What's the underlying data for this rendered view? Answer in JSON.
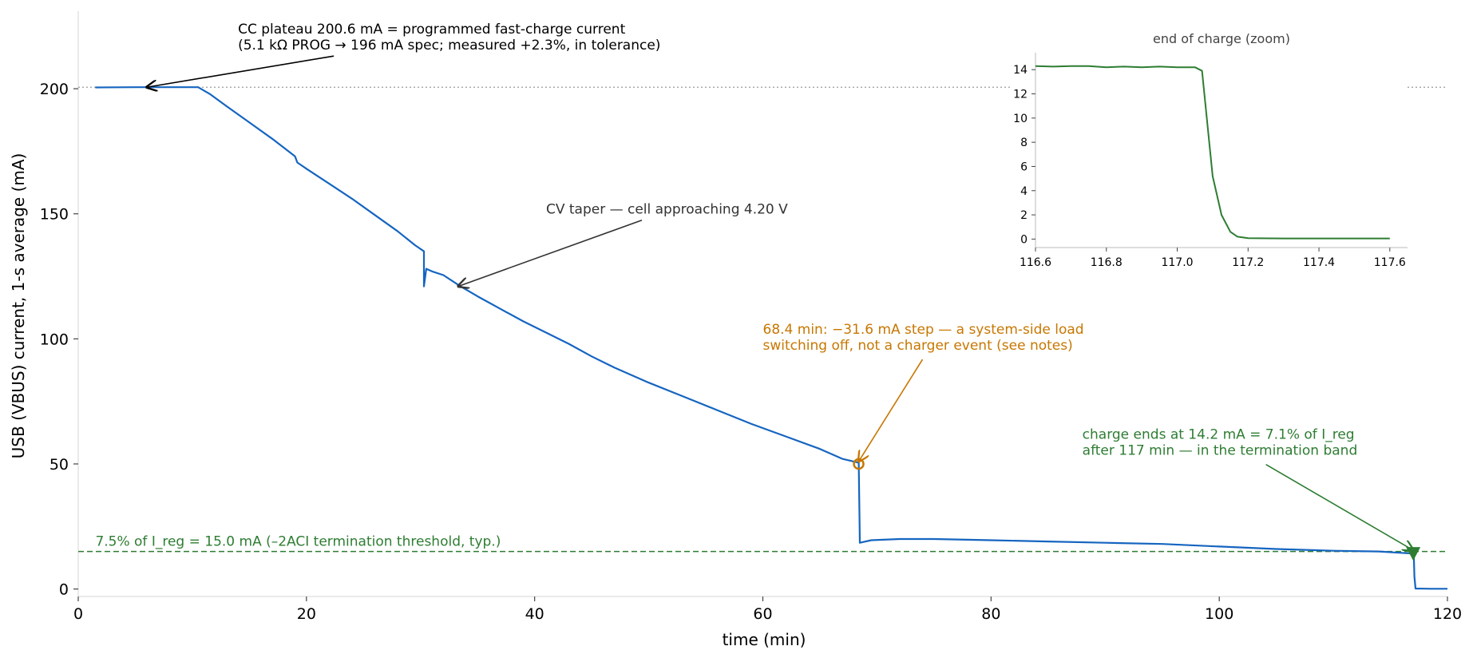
{
  "chart_data": {
    "type": "line",
    "xlabel": "time (min)",
    "ylabel": "USB (VBUS) current, 1-s average (mA)",
    "xlim": [
      0,
      120
    ],
    "ylim": [
      -3,
      231
    ],
    "x_ticks": [
      "0",
      "20",
      "40",
      "60",
      "80",
      "100",
      "120"
    ],
    "y_ticks": [
      "0",
      "50",
      "100",
      "150",
      "200"
    ],
    "colors": {
      "main": "#1565c0",
      "step": "#c77700",
      "term": "#2e7d32",
      "ref": "#999999",
      "text": "#333333"
    },
    "series": [
      {
        "color": "#1565c0",
        "points": [
          [
            1.5,
            200.5
          ],
          [
            5,
            200.6
          ],
          [
            8,
            200.6
          ],
          [
            10.5,
            200.6
          ],
          [
            11.5,
            198
          ],
          [
            13,
            193
          ],
          [
            15,
            186.5
          ],
          [
            17,
            180
          ],
          [
            19,
            173
          ],
          [
            19.2,
            170.5
          ],
          [
            20,
            168
          ],
          [
            22,
            162
          ],
          [
            24,
            156
          ],
          [
            26,
            149.5
          ],
          [
            28,
            143
          ],
          [
            29.5,
            137.5
          ],
          [
            30.3,
            135
          ],
          [
            30.3,
            121
          ],
          [
            30.5,
            128
          ],
          [
            31,
            127
          ],
          [
            32,
            125.5
          ],
          [
            33.5,
            121
          ],
          [
            35,
            117
          ],
          [
            37,
            112
          ],
          [
            39,
            107
          ],
          [
            41,
            102.5
          ],
          [
            43,
            98
          ],
          [
            45,
            93
          ],
          [
            47,
            88.5
          ],
          [
            50,
            82.5
          ],
          [
            53,
            77
          ],
          [
            56,
            71.5
          ],
          [
            59,
            66
          ],
          [
            62,
            61
          ],
          [
            65,
            56
          ],
          [
            67,
            52
          ],
          [
            68.4,
            50.5
          ],
          [
            68.5,
            18.5
          ],
          [
            69.5,
            19.5
          ],
          [
            72,
            20
          ],
          [
            75,
            20
          ],
          [
            80,
            19.5
          ],
          [
            85,
            19
          ],
          [
            90,
            18.5
          ],
          [
            95,
            18
          ],
          [
            100,
            17
          ],
          [
            105,
            16
          ],
          [
            110,
            15.3
          ],
          [
            114,
            15
          ],
          [
            116.5,
            14.3
          ],
          [
            117.05,
            14.2
          ],
          [
            117.1,
            5
          ],
          [
            117.2,
            0.2
          ],
          [
            118.5,
            0.1
          ],
          [
            120,
            0.1
          ]
        ]
      }
    ],
    "reference_lines": [
      {
        "y": 200.6,
        "style": "dotted",
        "color": "#999999"
      },
      {
        "y": 15.0,
        "style": "dashed",
        "color": "#2e7d32",
        "label": "7.5% of I_reg = 15.0 mA (–2ACI termination threshold, typ.)"
      }
    ],
    "markers": [
      {
        "x": 68.4,
        "y": 50,
        "shape": "circle",
        "color": "#c77700"
      },
      {
        "x": 117.0,
        "y": 14.2,
        "shape": "triangle",
        "color": "#2e7d32"
      }
    ],
    "annotations": [
      {
        "lines": [
          "CC plateau 200.6 mA = programmed fast-charge current",
          "(5.1 kΩ PROG → 196 mA spec; measured +2.3%, in tolerance)"
        ],
        "text_x": 14,
        "text_y": 222,
        "arrow_to": [
          6,
          200.6
        ],
        "color": "#000000"
      },
      {
        "lines": [
          "CV taper — cell approaching 4.20 V"
        ],
        "text_x": 41,
        "text_y": 150,
        "arrow_to": [
          33.3,
          121
        ],
        "color": "#333333"
      },
      {
        "lines": [
          "68.4 min: −31.6 mA step — a system-side load",
          "switching off, not a charger event (see notes)"
        ],
        "text_x": 60,
        "text_y": 102,
        "arrow_to": [
          68.4,
          51
        ],
        "color": "#c77700"
      },
      {
        "lines": [
          "charge ends at 14.2 mA = 7.1% of I_reg",
          "after 117 min — in the termination band"
        ],
        "text_x": 88,
        "text_y": 60,
        "arrow_to": [
          117,
          15.5
        ],
        "color": "#2e7d32"
      }
    ],
    "inset": {
      "title": "end of charge (zoom)",
      "xlim": [
        116.6,
        117.65
      ],
      "ylim": [
        -0.7,
        15.4
      ],
      "x_ticks": [
        "116.6",
        "116.8",
        "117.0",
        "117.2",
        "117.4",
        "117.6"
      ],
      "y_ticks": [
        "0",
        "2",
        "4",
        "6",
        "8",
        "10",
        "12",
        "14"
      ],
      "color": "#2e7d32",
      "points": [
        [
          116.6,
          14.3
        ],
        [
          116.65,
          14.25
        ],
        [
          116.7,
          14.3
        ],
        [
          116.75,
          14.3
        ],
        [
          116.8,
          14.2
        ],
        [
          116.85,
          14.25
        ],
        [
          116.9,
          14.2
        ],
        [
          116.95,
          14.25
        ],
        [
          117.0,
          14.2
        ],
        [
          117.05,
          14.2
        ],
        [
          117.07,
          13.9
        ],
        [
          117.1,
          5.2
        ],
        [
          117.125,
          2.0
        ],
        [
          117.15,
          0.6
        ],
        [
          117.17,
          0.2
        ],
        [
          117.2,
          0.08
        ],
        [
          117.3,
          0.05
        ],
        [
          117.4,
          0.05
        ],
        [
          117.5,
          0.05
        ],
        [
          117.6,
          0.05
        ]
      ]
    }
  }
}
